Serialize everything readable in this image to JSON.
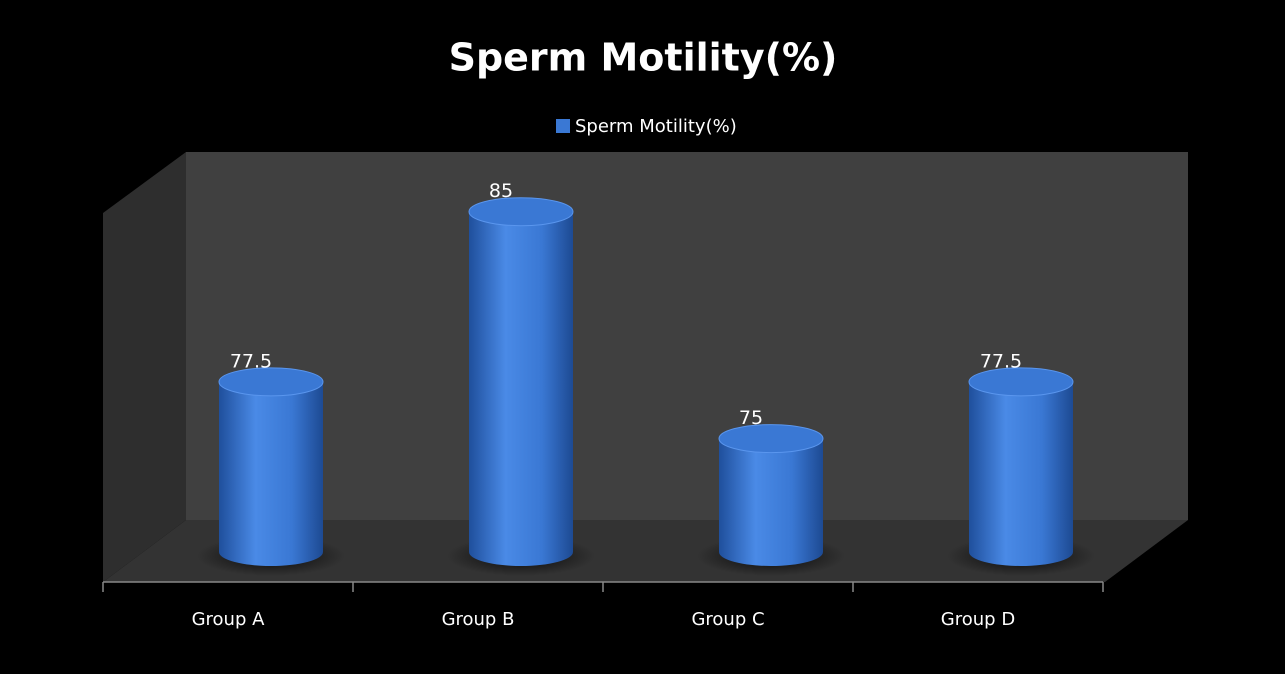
{
  "chart_data": {
    "type": "bar",
    "title": "Sperm Motility(%)",
    "categories": [
      "Group A",
      "Group B",
      "Group C",
      "Group D"
    ],
    "series": [
      {
        "name": "Sperm Motility(%)",
        "color": "#3a78d4",
        "values": [
          77.5,
          85,
          75,
          77.5
        ]
      }
    ],
    "ylim": [
      70,
      86
    ],
    "legend": "top"
  }
}
